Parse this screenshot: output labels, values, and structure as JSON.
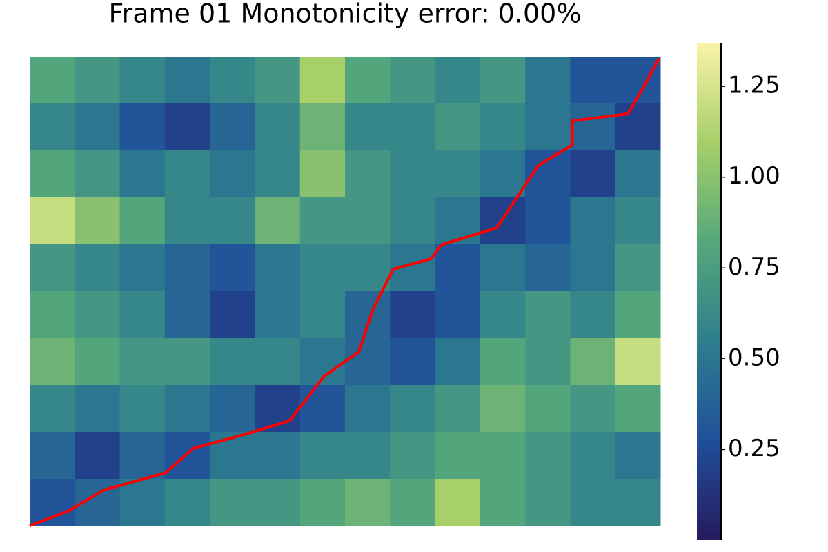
{
  "chart_data": {
    "type": "heatmap",
    "title": "Frame 01   Monotonicity error: 0.00%",
    "z": [
      [
        0.8,
        0.7,
        0.6,
        0.5,
        0.6,
        0.7,
        1.1,
        0.8,
        0.7,
        0.6,
        0.7,
        0.5,
        0.3,
        0.3
      ],
      [
        0.6,
        0.5,
        0.3,
        0.2,
        0.4,
        0.6,
        0.9,
        0.6,
        0.6,
        0.7,
        0.6,
        0.5,
        0.4,
        0.2
      ],
      [
        0.8,
        0.7,
        0.5,
        0.6,
        0.5,
        0.6,
        1.0,
        0.7,
        0.6,
        0.6,
        0.5,
        0.3,
        0.2,
        0.5
      ],
      [
        1.2,
        1.0,
        0.8,
        0.6,
        0.6,
        0.9,
        0.7,
        0.7,
        0.6,
        0.5,
        0.2,
        0.3,
        0.5,
        0.6
      ],
      [
        0.7,
        0.6,
        0.5,
        0.4,
        0.3,
        0.5,
        0.6,
        0.6,
        0.5,
        0.3,
        0.5,
        0.4,
        0.5,
        0.7
      ],
      [
        0.8,
        0.7,
        0.6,
        0.4,
        0.2,
        0.5,
        0.6,
        0.4,
        0.2,
        0.3,
        0.6,
        0.7,
        0.6,
        0.8
      ],
      [
        0.9,
        0.8,
        0.7,
        0.7,
        0.6,
        0.6,
        0.5,
        0.4,
        0.3,
        0.5,
        0.8,
        0.7,
        0.9,
        1.2
      ],
      [
        0.6,
        0.5,
        0.6,
        0.5,
        0.4,
        0.2,
        0.3,
        0.5,
        0.6,
        0.7,
        0.9,
        0.8,
        0.7,
        0.8
      ],
      [
        0.4,
        0.2,
        0.4,
        0.3,
        0.5,
        0.5,
        0.6,
        0.6,
        0.7,
        0.8,
        0.8,
        0.7,
        0.6,
        0.5
      ],
      [
        0.3,
        0.4,
        0.5,
        0.6,
        0.7,
        0.7,
        0.8,
        0.9,
        0.8,
        1.1,
        0.8,
        0.7,
        0.6,
        0.6
      ]
    ],
    "colormap": [
      "#271a5e",
      "#1f4f9a",
      "#2f7f8e",
      "#56a87a",
      "#a6cf6a",
      "#fbf3a8"
    ],
    "zlim": [
      0,
      1.37
    ],
    "zticks": [
      0.25,
      {
        "value": 0.5,
        "label": "0.50"
      },
      0.75,
      {
        "value": 1.0,
        "label": "1.00"
      },
      1.25
    ],
    "path": {
      "color": "#ff0000",
      "x": [
        0,
        0.87,
        1.64,
        3.02,
        3.63,
        4.86,
        5.77,
        6.54,
        7.31,
        7.61,
        8.07,
        8.91,
        9.14,
        10.37,
        11.29,
        12.05,
        12.05,
        13.28,
        13.59,
        13.97
      ],
      "y": [
        0,
        0.32,
        0.76,
        1.13,
        1.65,
        1.97,
        2.24,
        3.19,
        3.71,
        4.59,
        5.47,
        5.69,
        5.99,
        6.35,
        7.68,
        8.12,
        8.63,
        8.78,
        9.29,
        9.96
      ]
    }
  }
}
